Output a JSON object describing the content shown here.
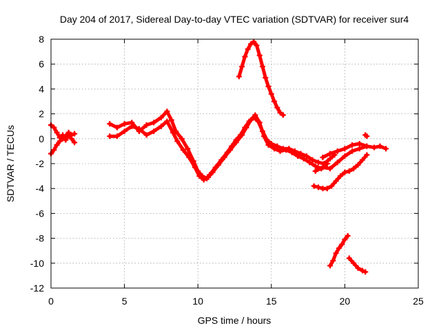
{
  "chart_data": {
    "type": "scatter",
    "title": "Day 204 of 2017, Sidereal Day-to-day VTEC variation (SDTVAR) for receiver sur4",
    "xlabel": "GPS time / hours",
    "ylabel": "SDTVAR / TECUs",
    "xlim": [
      0,
      25
    ],
    "ylim": [
      -12,
      8
    ],
    "xticks": [
      0,
      5,
      10,
      15,
      20,
      25
    ],
    "yticks": [
      -12,
      -10,
      -8,
      -6,
      -4,
      -2,
      0,
      2,
      4,
      6,
      8
    ],
    "grid": true,
    "legend": "none",
    "series_color": "#ff0000",
    "series": [
      {
        "x": [
          0.0,
          0.2,
          0.4,
          0.6,
          0.8,
          1.0,
          1.2,
          1.4,
          1.6
        ],
        "y": [
          1.1,
          0.9,
          0.5,
          0.1,
          0.3,
          -0.1,
          0.3,
          0.0,
          -0.3
        ]
      },
      {
        "x": [
          0.0,
          0.2,
          0.4,
          0.6,
          0.8,
          1.0,
          1.2,
          1.4,
          1.6
        ],
        "y": [
          -1.2,
          -0.9,
          -0.5,
          -0.2,
          0.0,
          0.2,
          0.5,
          0.3,
          0.4
        ]
      },
      {
        "x": [
          4.0,
          4.5,
          5.0,
          5.5,
          6.0,
          6.5,
          7.0,
          7.5,
          7.9,
          8.2,
          8.5,
          8.9,
          9.3,
          9.7,
          10.0,
          10.3,
          10.6,
          10.8,
          11.2,
          11.6,
          12.0,
          12.3,
          12.6,
          12.9,
          13.2,
          13.5,
          13.8,
          14.1,
          14.4,
          14.7,
          15.0,
          15.4,
          15.8,
          16.2,
          16.6,
          17.0,
          17.4,
          17.8,
          18.2,
          18.6,
          19.0,
          19.3
        ],
        "y": [
          1.2,
          0.9,
          1.2,
          1.3,
          0.6,
          1.1,
          1.3,
          1.7,
          2.2,
          1.5,
          0.6,
          0.0,
          -0.8,
          -1.8,
          -2.6,
          -3.0,
          -3.2,
          -2.9,
          -2.3,
          -1.7,
          -1.1,
          -0.6,
          -0.1,
          0.3,
          0.9,
          1.4,
          1.7,
          1.4,
          0.6,
          -0.1,
          -0.4,
          -0.6,
          -0.8,
          -0.8,
          -1.0,
          -1.2,
          -1.4,
          -1.7,
          -1.9,
          -2.0,
          -1.6,
          -1.3
        ]
      },
      {
        "x": [
          4.0,
          4.5,
          5.0,
          5.5,
          6.0,
          6.5,
          7.0,
          7.5,
          7.9,
          8.3,
          8.6,
          9.0,
          9.4,
          9.8,
          10.1,
          10.4,
          10.7,
          11.0,
          11.4,
          11.8,
          12.2,
          12.6,
          13.0,
          13.3,
          13.6,
          13.9,
          14.2,
          14.5,
          14.8,
          15.2,
          15.6,
          16.0,
          16.4,
          16.8,
          17.2,
          17.6,
          18.0,
          18.4,
          18.8
        ],
        "y": [
          0.2,
          0.2,
          0.6,
          1.0,
          0.8,
          0.3,
          0.6,
          1.0,
          1.4,
          0.5,
          -0.2,
          -0.9,
          -1.5,
          -2.3,
          -3.0,
          -3.3,
          -3.1,
          -2.7,
          -2.1,
          -1.5,
          -0.9,
          -0.3,
          0.3,
          0.9,
          1.5,
          1.9,
          1.3,
          0.2,
          -0.5,
          -0.8,
          -1.0,
          -0.9,
          -1.1,
          -1.4,
          -1.6,
          -1.9,
          -2.2,
          -2.4,
          -2.0
        ]
      },
      {
        "x": [
          18.5,
          19.0,
          19.5,
          20.0,
          20.5,
          21.0,
          21.5,
          22.0,
          22.4,
          22.8
        ],
        "y": [
          -1.5,
          -1.2,
          -1.0,
          -0.8,
          -0.5,
          -0.4,
          -0.6,
          -0.7,
          -0.6,
          -0.8
        ]
      },
      {
        "x": [
          18.0,
          18.5,
          19.0,
          19.5,
          20.0,
          20.5,
          21.0,
          21.5
        ],
        "y": [
          -2.6,
          -2.3,
          -2.4,
          -1.9,
          -1.4,
          -1.0,
          -0.8,
          -0.6
        ]
      },
      {
        "x": [
          12.8,
          13.0,
          13.2,
          13.4,
          13.6,
          13.8,
          14.0,
          14.2,
          14.4,
          14.6,
          14.8,
          15.0,
          15.2,
          15.4,
          15.6,
          15.8
        ],
        "y": [
          5.0,
          5.8,
          6.6,
          7.2,
          7.6,
          7.8,
          7.5,
          6.7,
          5.8,
          4.9,
          4.2,
          3.6,
          3.0,
          2.5,
          2.1,
          1.9
        ]
      },
      {
        "x": [
          17.9,
          18.2,
          18.5,
          18.8,
          19.1,
          19.4,
          19.7,
          20.0,
          20.3,
          20.6,
          20.9,
          21.2,
          21.5
        ],
        "y": [
          -3.8,
          -3.9,
          -4.0,
          -4.0,
          -3.8,
          -3.4,
          -3.0,
          -2.7,
          -2.6,
          -2.4,
          -2.1,
          -1.7,
          -1.3
        ]
      },
      {
        "x": [
          19.0,
          19.2,
          19.4,
          19.6,
          19.8,
          20.0,
          20.2
        ],
        "y": [
          -10.2,
          -9.8,
          -9.2,
          -8.8,
          -8.5,
          -8.1,
          -7.8
        ]
      },
      {
        "x": [
          20.3,
          20.6,
          20.9,
          21.2,
          21.4
        ],
        "y": [
          -9.6,
          -10.0,
          -10.4,
          -10.6,
          -10.7
        ]
      },
      {
        "x": [
          21.4,
          21.5
        ],
        "y": [
          0.3,
          0.2
        ]
      }
    ]
  }
}
